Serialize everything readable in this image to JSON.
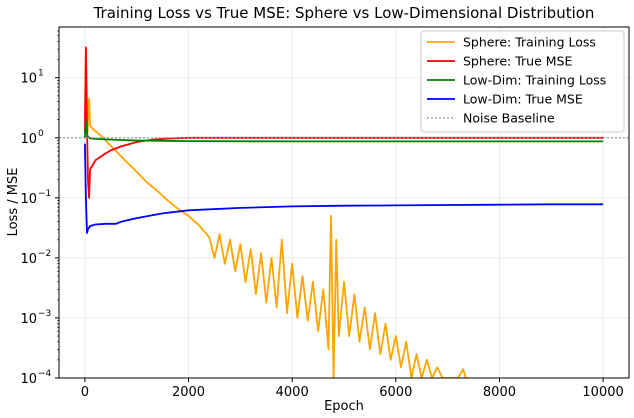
{
  "chart_data": {
    "type": "line",
    "title": "Training Loss vs True MSE: Sphere vs Low-Dimensional Distribution",
    "xlabel": "Epoch",
    "ylabel": "Loss / MSE",
    "xlim": [
      -500,
      10500
    ],
    "ylim": [
      0.0001,
      70
    ],
    "yscale": "log",
    "grid": true,
    "legend_position": "top-right",
    "x_ticks": [
      0,
      2000,
      4000,
      6000,
      8000,
      10000
    ],
    "x_tick_labels": [
      "0",
      "2000",
      "4000",
      "6000",
      "8000",
      "10000"
    ],
    "y_ticks": [
      0.0001,
      0.001,
      0.01,
      0.1,
      1,
      10
    ],
    "y_tick_labels": [
      {
        "base": "10",
        "exp": "−4"
      },
      {
        "base": "10",
        "exp": "−3"
      },
      {
        "base": "10",
        "exp": "−2"
      },
      {
        "base": "10",
        "exp": "−1"
      },
      {
        "base": "10",
        "exp": "0"
      },
      {
        "base": "10",
        "exp": "1"
      }
    ],
    "series": [
      {
        "name": "Sphere: Training Loss",
        "color": "#ffa500",
        "x": [
          0,
          20,
          50,
          80,
          100,
          150,
          200,
          300,
          400,
          600,
          800,
          1000,
          1200,
          1400,
          1600,
          1800,
          2000,
          2200,
          2400,
          2500,
          2600,
          2700,
          2800,
          2900,
          3000,
          3100,
          3200,
          3300,
          3400,
          3500,
          3600,
          3700,
          3800,
          3900,
          4000,
          4100,
          4200,
          4300,
          4400,
          4500,
          4600,
          4700,
          4750,
          4800,
          4850,
          4900,
          5000,
          5100,
          5200,
          5300,
          5400,
          5500,
          5600,
          5700,
          5800,
          5900,
          6000,
          6100,
          6200,
          6300,
          6400,
          6500,
          6600,
          6700,
          6800,
          6900,
          7000,
          7200,
          7300,
          7350,
          7400
        ],
        "values": [
          2.0,
          28.0,
          1.2,
          4.5,
          1.6,
          1.4,
          1.3,
          1.1,
          0.9,
          0.6,
          0.4,
          0.27,
          0.18,
          0.13,
          0.09,
          0.065,
          0.05,
          0.035,
          0.022,
          0.01,
          0.025,
          0.008,
          0.02,
          0.006,
          0.017,
          0.004,
          0.014,
          0.0025,
          0.012,
          0.0018,
          0.01,
          0.0015,
          0.02,
          0.0012,
          0.008,
          0.001,
          0.005,
          0.0009,
          0.004,
          0.0006,
          0.003,
          0.0003,
          0.05,
          0.0001,
          0.02,
          0.0005,
          0.004,
          0.0005,
          0.0025,
          0.0004,
          0.0015,
          0.0003,
          0.0012,
          0.00025,
          0.0008,
          0.0002,
          0.0005,
          0.00015,
          0.0004,
          0.0001,
          0.00025,
          0.0001,
          0.0002,
          0.0001,
          0.00015,
          0.0001,
          0.0001,
          0.0001,
          0.00014,
          0.0001,
          0.0001
        ]
      },
      {
        "name": "Sphere: True MSE",
        "color": "#ff0000",
        "x": [
          0,
          20,
          40,
          60,
          80,
          100,
          150,
          200,
          300,
          400,
          500,
          700,
          1000,
          1300,
          1600,
          2000,
          3000,
          4000,
          5000,
          6000,
          7000,
          8000,
          9000,
          10000
        ],
        "values": [
          1.2,
          32.0,
          1.5,
          0.2,
          0.1,
          0.3,
          0.35,
          0.42,
          0.48,
          0.55,
          0.62,
          0.72,
          0.85,
          0.93,
          0.97,
          1.0,
          1.0,
          1.0,
          1.0,
          1.0,
          1.0,
          1.0,
          1.0,
          1.0
        ]
      },
      {
        "name": "Low-Dim: Training Loss",
        "color": "#008000",
        "x": [
          0,
          20,
          50,
          100,
          200,
          400,
          700,
          1000,
          1500,
          2000,
          4000,
          6000,
          8000,
          10000
        ],
        "values": [
          1.0,
          1.9,
          1.05,
          0.98,
          0.96,
          0.94,
          0.92,
          0.9,
          0.89,
          0.88,
          0.87,
          0.87,
          0.87,
          0.87
        ]
      },
      {
        "name": "Low-Dim: True MSE",
        "color": "#0000ff",
        "x": [
          0,
          20,
          40,
          60,
          100,
          200,
          400,
          600,
          700,
          800,
          1000,
          1500,
          2000,
          3000,
          4000,
          5000,
          6000,
          7000,
          8000,
          9000,
          10000
        ],
        "values": [
          0.8,
          0.1,
          0.026,
          0.03,
          0.034,
          0.036,
          0.037,
          0.037,
          0.04,
          0.042,
          0.046,
          0.055,
          0.062,
          0.068,
          0.072,
          0.074,
          0.075,
          0.076,
          0.077,
          0.078,
          0.078
        ]
      },
      {
        "name": "Noise Baseline",
        "color": "#999999",
        "dashed": true,
        "x": [
          -500,
          10500
        ],
        "values": [
          1.0,
          1.0
        ]
      }
    ]
  }
}
